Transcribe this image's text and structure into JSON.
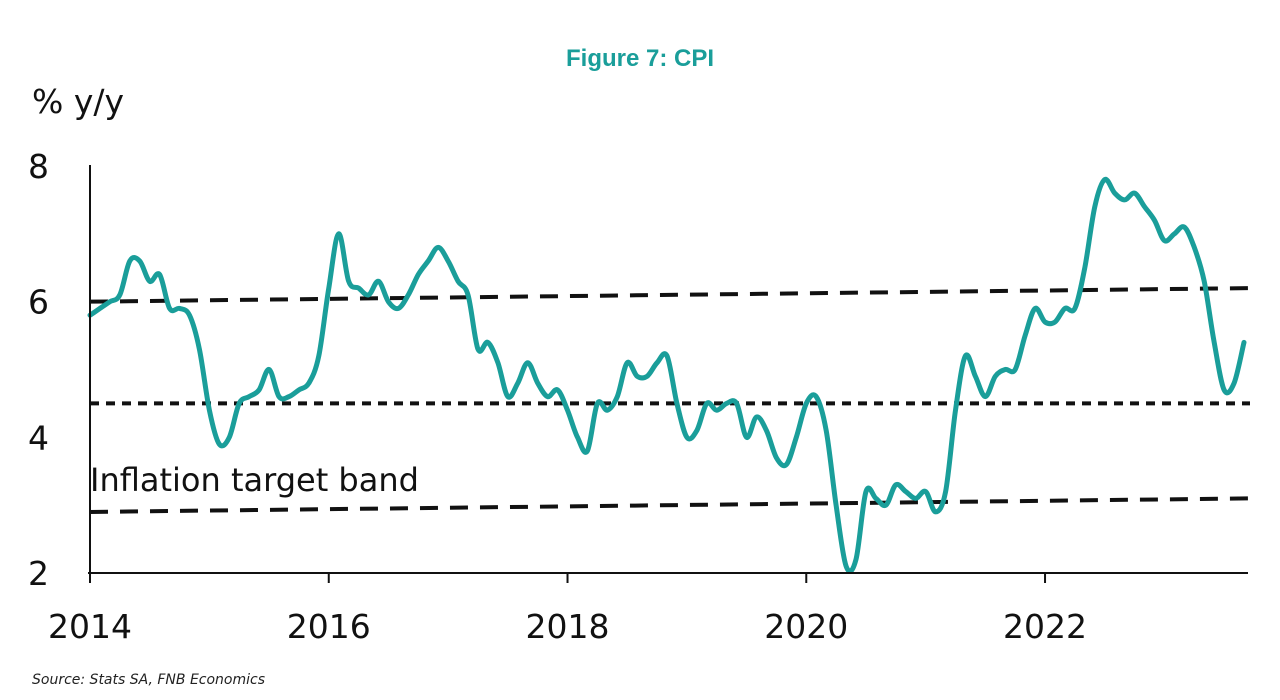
{
  "chart_data": {
    "type": "line",
    "title": "Figure 7: CPI",
    "ylabel": "% y/y",
    "source": "Source: Stats SA, FNB Economics",
    "ylim": [
      2,
      8
    ],
    "xlim": [
      "2014-01",
      "2023-09"
    ],
    "yticks": [
      "2",
      "4",
      "6",
      "8"
    ],
    "xticks": [
      {
        "label": "2014",
        "date": "2014-01"
      },
      {
        "label": "2016",
        "date": "2016-01"
      },
      {
        "label": "2018",
        "date": "2018-01"
      },
      {
        "label": "2020",
        "date": "2020-01"
      },
      {
        "label": "2022",
        "date": "2022-01"
      }
    ],
    "annotation": "Inflation target band",
    "colors": {
      "series": "#1a9e9a",
      "band": "#111111"
    },
    "series": [
      {
        "x": [
          "2014-01",
          "2014-02",
          "2014-03",
          "2014-04",
          "2014-05",
          "2014-06",
          "2014-07",
          "2014-08",
          "2014-09",
          "2014-10",
          "2014-11",
          "2014-12",
          "2015-01",
          "2015-02",
          "2015-03",
          "2015-04",
          "2015-05",
          "2015-06",
          "2015-07",
          "2015-08",
          "2015-09",
          "2015-10",
          "2015-11",
          "2015-12",
          "2016-01",
          "2016-02",
          "2016-03",
          "2016-04",
          "2016-05",
          "2016-06",
          "2016-07",
          "2016-08",
          "2016-09",
          "2016-10",
          "2016-11",
          "2016-12",
          "2017-01",
          "2017-02",
          "2017-03",
          "2017-04",
          "2017-05",
          "2017-06",
          "2017-07",
          "2017-08",
          "2017-09",
          "2017-10",
          "2017-11",
          "2017-12",
          "2018-01",
          "2018-02",
          "2018-03",
          "2018-04",
          "2018-05",
          "2018-06",
          "2018-07",
          "2018-08",
          "2018-09",
          "2018-10",
          "2018-11",
          "2018-12",
          "2019-01",
          "2019-02",
          "2019-03",
          "2019-04",
          "2019-05",
          "2019-06",
          "2019-07",
          "2019-08",
          "2019-09",
          "2019-10",
          "2019-11",
          "2019-12",
          "2020-01",
          "2020-02",
          "2020-03",
          "2020-04",
          "2020-05",
          "2020-06",
          "2020-07",
          "2020-08",
          "2020-09",
          "2020-10",
          "2020-11",
          "2020-12",
          "2021-01",
          "2021-02",
          "2021-03",
          "2021-04",
          "2021-05",
          "2021-06",
          "2021-07",
          "2021-08",
          "2021-09",
          "2021-10",
          "2021-11",
          "2021-12",
          "2022-01",
          "2022-02",
          "2022-03",
          "2022-04",
          "2022-05",
          "2022-06",
          "2022-07",
          "2022-08",
          "2022-09",
          "2022-10",
          "2022-11",
          "2022-12",
          "2023-01",
          "2023-02",
          "2023-03",
          "2023-04",
          "2023-05",
          "2023-06",
          "2023-07",
          "2023-08",
          "2023-09"
        ],
        "values": [
          5.8,
          5.9,
          6.0,
          6.1,
          6.6,
          6.6,
          6.3,
          6.4,
          5.9,
          5.9,
          5.8,
          5.3,
          4.4,
          3.9,
          4.0,
          4.5,
          4.6,
          4.7,
          5.0,
          4.6,
          4.6,
          4.7,
          4.8,
          5.2,
          6.2,
          7.0,
          6.3,
          6.2,
          6.1,
          6.3,
          6.0,
          5.9,
          6.1,
          6.4,
          6.6,
          6.8,
          6.6,
          6.3,
          6.1,
          5.3,
          5.4,
          5.1,
          4.6,
          4.8,
          5.1,
          4.8,
          4.6,
          4.7,
          4.4,
          4.0,
          3.8,
          4.5,
          4.4,
          4.6,
          5.1,
          4.9,
          4.9,
          5.1,
          5.2,
          4.5,
          4.0,
          4.1,
          4.5,
          4.4,
          4.5,
          4.5,
          4.0,
          4.3,
          4.1,
          3.7,
          3.6,
          4.0,
          4.5,
          4.6,
          4.1,
          3.0,
          2.1,
          2.2,
          3.2,
          3.1,
          3.0,
          3.3,
          3.2,
          3.1,
          3.2,
          2.9,
          3.2,
          4.4,
          5.2,
          4.9,
          4.6,
          4.9,
          5.0,
          5.0,
          5.5,
          5.9,
          5.7,
          5.7,
          5.9,
          5.9,
          6.5,
          7.4,
          7.8,
          7.6,
          7.5,
          7.6,
          7.4,
          7.2,
          6.9,
          7.0,
          7.1,
          6.8,
          6.3,
          5.4,
          4.7,
          4.8,
          5.4
        ]
      }
    ],
    "reference_lines": [
      {
        "style": "dashed",
        "start": 6.0,
        "end": 6.2
      },
      {
        "style": "dotted",
        "start": 4.5,
        "end": 4.5
      },
      {
        "style": "dashed",
        "start": 2.9,
        "end": 3.1
      }
    ]
  }
}
